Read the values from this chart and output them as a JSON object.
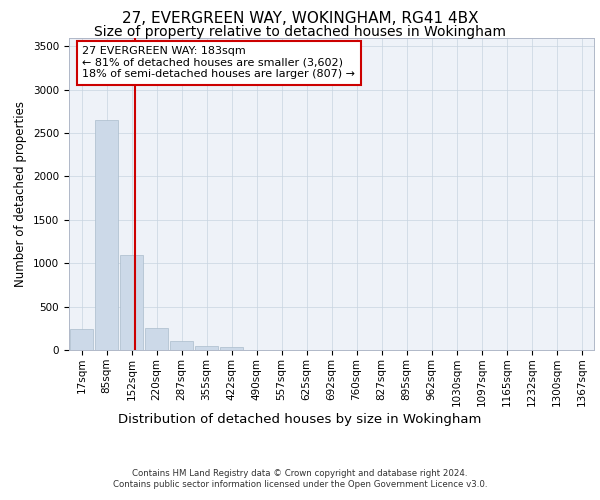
{
  "title1": "27, EVERGREEN WAY, WOKINGHAM, RG41 4BX",
  "title2": "Size of property relative to detached houses in Wokingham",
  "xlabel": "Distribution of detached houses by size in Wokingham",
  "ylabel": "Number of detached properties",
  "footnote1": "Contains HM Land Registry data © Crown copyright and database right 2024.",
  "footnote2": "Contains public sector information licensed under the Open Government Licence v3.0.",
  "bin_labels": [
    "17sqm",
    "85sqm",
    "152sqm",
    "220sqm",
    "287sqm",
    "355sqm",
    "422sqm",
    "490sqm",
    "557sqm",
    "625sqm",
    "692sqm",
    "760sqm",
    "827sqm",
    "895sqm",
    "962sqm",
    "1030sqm",
    "1097sqm",
    "1165sqm",
    "1232sqm",
    "1300sqm",
    "1367sqm"
  ],
  "bar_heights": [
    245,
    2650,
    1100,
    250,
    100,
    50,
    30,
    5,
    2,
    2,
    1,
    1,
    0,
    0,
    0,
    0,
    0,
    0,
    0,
    0,
    0
  ],
  "bar_color": "#ccd9e8",
  "bar_edge_color": "#aabccc",
  "vline_x_idx": 2.15,
  "vline_color": "#cc0000",
  "annotation_text": "27 EVERGREEN WAY: 183sqm\n← 81% of detached houses are smaller (3,602)\n18% of semi-detached houses are larger (807) →",
  "annotation_box_color": "white",
  "annotation_box_edge": "#cc0000",
  "ylim": [
    0,
    3600
  ],
  "yticks": [
    0,
    500,
    1000,
    1500,
    2000,
    2500,
    3000,
    3500
  ],
  "plot_bg_color": "#eef2f8",
  "grid_color": "#c8d4e0",
  "title1_fontsize": 11,
  "title2_fontsize": 10,
  "xlabel_fontsize": 9.5,
  "ylabel_fontsize": 8.5,
  "tick_fontsize": 7.5,
  "annot_fontsize": 8
}
